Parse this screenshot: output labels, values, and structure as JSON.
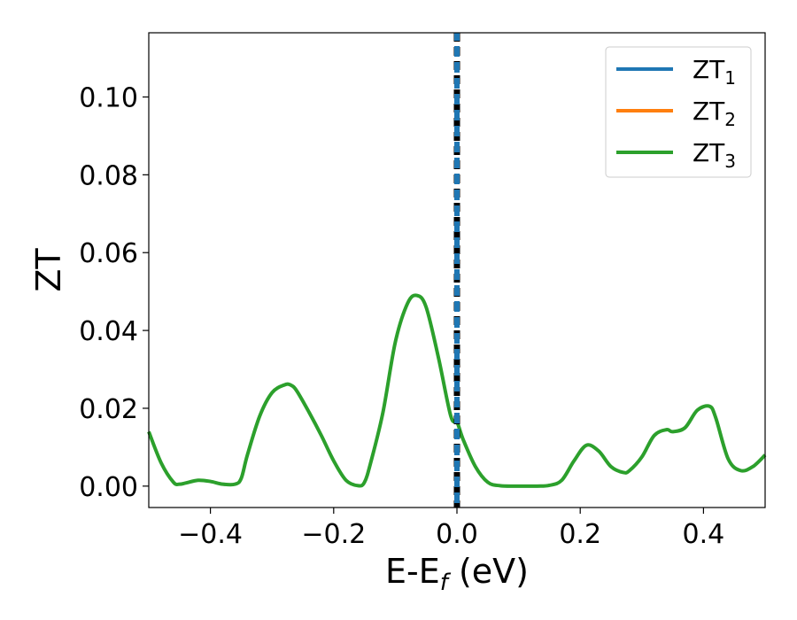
{
  "chart_data": {
    "type": "line",
    "xlabel": {
      "main": "E-E",
      "sub": "f",
      "unit": " (eV)"
    },
    "ylabel": "ZT",
    "xlim": [
      -0.5,
      0.5
    ],
    "ylim": [
      -0.0055,
      0.1165
    ],
    "x_ticks": [
      -0.4,
      -0.2,
      0.0,
      0.2,
      0.4
    ],
    "x_tick_labels": [
      "−0.4",
      "−0.2",
      "0.0",
      "0.2",
      "0.4"
    ],
    "y_ticks": [
      0.0,
      0.02,
      0.04,
      0.06,
      0.08,
      0.1
    ],
    "y_tick_labels": [
      "0.00",
      "0.02",
      "0.04",
      "0.06",
      "0.08",
      "0.10"
    ],
    "grid": false,
    "legend_position": "top-right",
    "vertical_lines": [
      {
        "x": 0.0,
        "style": "dashed",
        "color": "#000000"
      },
      {
        "x": 0.0,
        "style": "dashed",
        "color": "#1f77b4"
      }
    ],
    "series": [
      {
        "name": "ZT",
        "subscript": "1",
        "color": "#1f77b4"
      },
      {
        "name": "ZT",
        "subscript": "2",
        "color": "#ff7f0e"
      },
      {
        "name": "ZT",
        "subscript": "3",
        "color": "#2ca02c",
        "x": [
          -0.5,
          -0.48,
          -0.46,
          -0.45,
          -0.44,
          -0.42,
          -0.4,
          -0.38,
          -0.36,
          -0.35,
          -0.34,
          -0.32,
          -0.3,
          -0.28,
          -0.27,
          -0.26,
          -0.24,
          -0.22,
          -0.2,
          -0.18,
          -0.16,
          -0.15,
          -0.14,
          -0.12,
          -0.1,
          -0.08,
          -0.065,
          -0.05,
          -0.03,
          -0.01,
          0.0,
          0.01,
          0.03,
          0.05,
          0.07,
          0.1,
          0.13,
          0.15,
          0.17,
          0.19,
          0.21,
          0.23,
          0.25,
          0.27,
          0.28,
          0.3,
          0.32,
          0.34,
          0.35,
          0.37,
          0.39,
          0.41,
          0.42,
          0.44,
          0.46,
          0.48,
          0.5
        ],
        "values": [
          0.014,
          0.006,
          0.001,
          0.0005,
          0.0008,
          0.0015,
          0.0012,
          0.0005,
          0.0005,
          0.002,
          0.008,
          0.018,
          0.024,
          0.026,
          0.026,
          0.0245,
          0.019,
          0.013,
          0.0065,
          0.0015,
          0.0001,
          0.001,
          0.006,
          0.019,
          0.037,
          0.047,
          0.049,
          0.046,
          0.033,
          0.018,
          0.0165,
          0.012,
          0.005,
          0.001,
          0.0001,
          0.0,
          0.0,
          0.0002,
          0.0015,
          0.0065,
          0.0105,
          0.009,
          0.005,
          0.0035,
          0.004,
          0.0075,
          0.013,
          0.0145,
          0.014,
          0.015,
          0.0195,
          0.0205,
          0.0175,
          0.007,
          0.004,
          0.005,
          0.008
        ]
      }
    ]
  }
}
